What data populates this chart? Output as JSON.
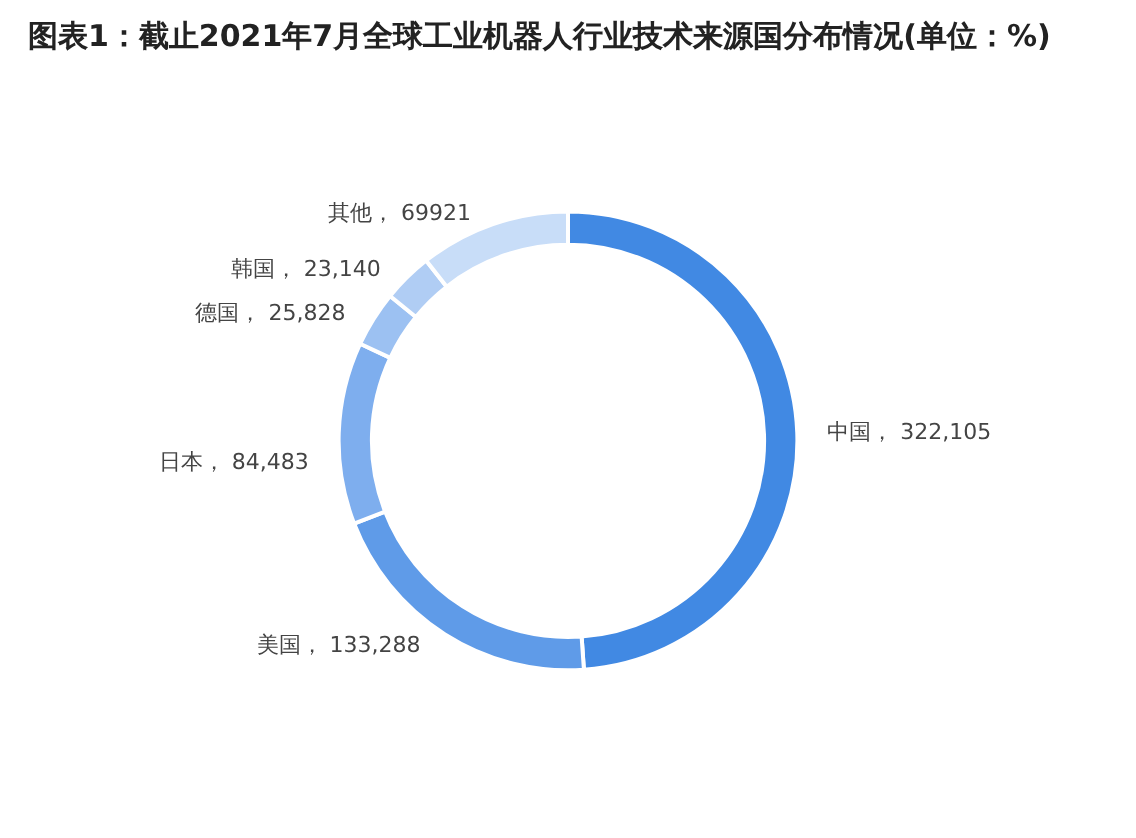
{
  "chart_data": {
    "type": "donut",
    "title": "图表1：截止2021年7月全球工业机器人行业技术来源国分布情况(单位：%)",
    "categories": [
      "中国",
      "美国",
      "日本",
      "德国",
      "韩国",
      "其他"
    ],
    "values": [
      322105,
      133288,
      84483,
      25828,
      23140,
      69921
    ],
    "value_labels": [
      "322,105",
      "133,288",
      "84,483",
      "25,828",
      "23,140",
      "69921"
    ],
    "colors": [
      "#4189e3",
      "#5f9be8",
      "#7eaeee",
      "#9cc1f2",
      "#b0cdf4",
      "#c8ddf8"
    ],
    "legend": false
  }
}
